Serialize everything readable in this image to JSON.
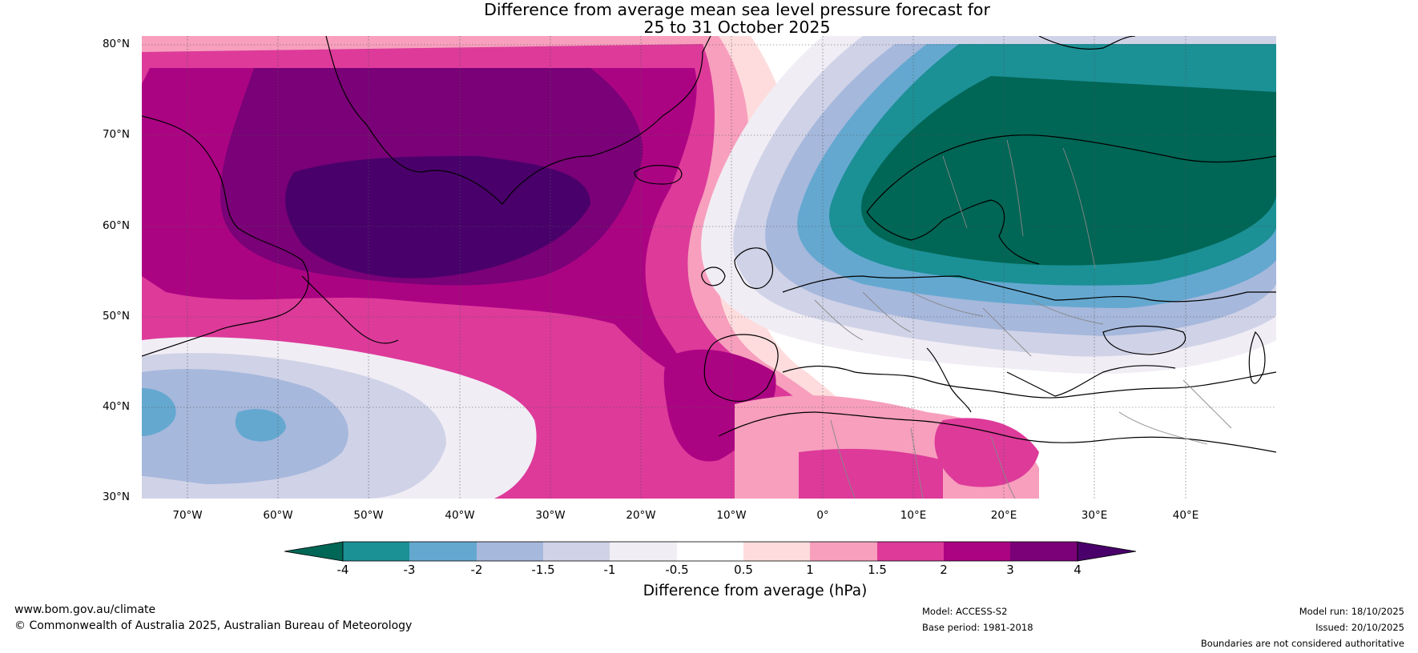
{
  "title": {
    "line1": "Difference from average mean sea level pressure forecast for",
    "line2": "25 to 31 October 2025"
  },
  "map": {
    "projection": "equirectangular",
    "extent_lon": [
      -75,
      50
    ],
    "extent_lat": [
      30,
      81
    ],
    "lat_labels": [
      "80°N",
      "70°N",
      "60°N",
      "50°N",
      "40°N",
      "30°N"
    ],
    "lon_labels": [
      "70°W",
      "60°W",
      "50°W",
      "40°W",
      "30°W",
      "20°W",
      "10°W",
      "0°",
      "10°E",
      "20°E",
      "30°E",
      "40°E"
    ],
    "anomalies": [
      {
        "region": "Greenland / Labrador Sea / North Atlantic",
        "sign": "positive",
        "max_hpa": 4
      },
      {
        "region": "Iberia and western Mediterranean",
        "sign": "positive",
        "max_hpa": 3
      },
      {
        "region": "North Africa",
        "sign": "positive",
        "max_hpa": 2
      },
      {
        "region": "Scandinavia and northern Europe",
        "sign": "negative",
        "min_hpa": -4
      },
      {
        "region": "Western subtropical North Atlantic",
        "sign": "negative",
        "min_hpa": -3
      }
    ]
  },
  "colorbar": {
    "title": "Difference from average (hPa)",
    "labels": [
      "-4",
      "-3",
      "-2",
      "-1.5",
      "-1",
      "-0.5",
      "0.5",
      "1",
      "1.5",
      "2",
      "3",
      "4"
    ],
    "colors": {
      "lt_-4": "#006655",
      "-4_-3": "#1b9095",
      "-3_-2": "#64a8d0",
      "-2_-1.5": "#a6b8dc",
      "-1.5_-1": "#d0d2e7",
      "-1_-0.5": "#f1edf5",
      "-0.5_0.5": "#ffffff",
      "0.5_1": "#fedcdd",
      "1_1.5": "#f79fbd",
      "1.5_2": "#dd3a9a",
      "2_3": "#ab0483",
      "3_4": "#7a0177",
      "gt_4": "#49006a"
    }
  },
  "footer": {
    "url": "www.bom.gov.au/climate",
    "copyright": "© Commonwealth of Australia 2025, Australian Bureau of Meteorology",
    "model": "Model: ACCESS-S2",
    "base_period": "Base period: 1981-2018",
    "model_run": "Model run: 18/10/2025",
    "issued": "Issued: 20/10/2025",
    "disclaimer": "Boundaries are not considered authoritative"
  }
}
